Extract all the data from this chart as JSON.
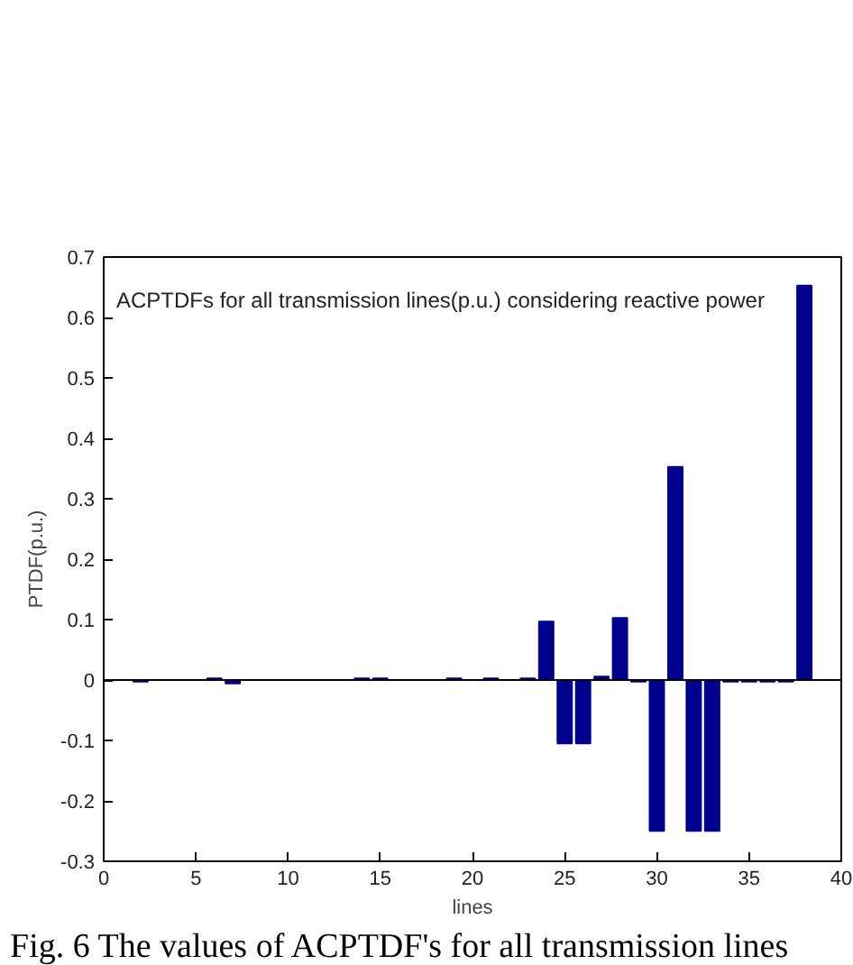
{
  "chart_data": {
    "type": "bar",
    "title": "ACPTDFs for all transmission lines(p.u.) considering reactive power",
    "xlabel": "lines",
    "ylabel": "PTDF(p.u.)",
    "annotations": [
      "Fig. 6 The values of ACPTDF's for all transmission lines"
    ],
    "x": [
      1,
      2,
      3,
      4,
      5,
      6,
      7,
      8,
      9,
      10,
      11,
      12,
      13,
      14,
      15,
      16,
      17,
      18,
      19,
      20,
      21,
      22,
      23,
      24,
      25,
      26,
      27,
      28,
      29,
      30,
      31,
      32,
      33,
      34,
      35,
      36,
      37,
      38
    ],
    "values": [
      0,
      -0.003,
      0,
      0,
      0,
      0.003,
      -0.006,
      0,
      0,
      0,
      0,
      0,
      0,
      0.003,
      0.003,
      0,
      0,
      0,
      0.003,
      0,
      0.003,
      0,
      0.003,
      0.097,
      -0.105,
      -0.105,
      0.006,
      0.103,
      -0.003,
      -0.25,
      0.353,
      -0.25,
      -0.25,
      -0.003,
      -0.003,
      -0.003,
      -0.003,
      0.653
    ],
    "color": "#00008f",
    "xlim": [
      0,
      40
    ],
    "xticks": [
      0,
      5,
      10,
      15,
      20,
      25,
      30,
      35,
      40
    ],
    "ylim": [
      -0.3,
      0.7
    ],
    "yticks": [
      -0.3,
      -0.2,
      -0.1,
      0,
      0.1,
      0.2,
      0.3,
      0.4,
      0.5,
      0.6,
      0.7
    ],
    "ref_lines": [
      {
        "axis": "y",
        "value": 0,
        "color": "#000000"
      }
    ],
    "grid": false
  }
}
